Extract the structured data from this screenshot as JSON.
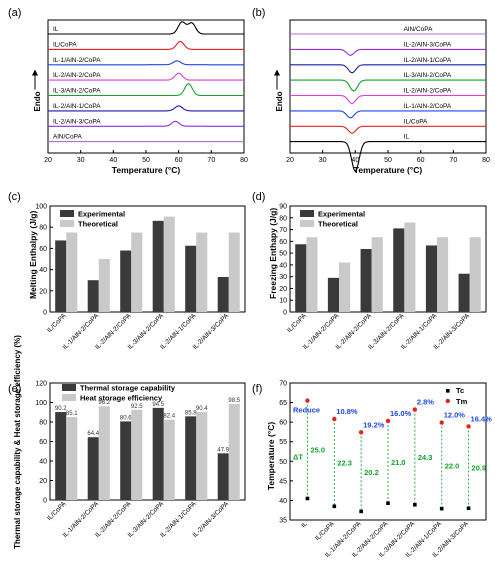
{
  "figure": {
    "panel_labels": [
      "(a)",
      "(b)",
      "(c)",
      "(d)",
      "(e)",
      "(f)"
    ]
  },
  "chart_data": [
    {
      "panel": "(a)",
      "type": "line",
      "xlabel": "Temperature (°C)",
      "ylabel": "Endo",
      "xlim": [
        20,
        80
      ],
      "xticks": [
        20,
        30,
        40,
        50,
        60,
        70,
        80
      ],
      "series": [
        {
          "name": "IL",
          "color": "#000000",
          "peaks": [
            {
              "x": 61,
              "h": 12
            },
            {
              "x": 64,
              "h": 11
            }
          ]
        },
        {
          "name": "IL/CoPA",
          "color": "#e8211c",
          "peaks": [
            {
              "x": 60.5,
              "h": 8
            }
          ]
        },
        {
          "name": "IL-1/AlN-2/CoPA",
          "color": "#1f46e6",
          "peaks": [
            {
              "x": 59.5,
              "h": 4
            }
          ]
        },
        {
          "name": "IL-2/AlN-2/CoPA",
          "color": "#e23bd9",
          "peaks": [
            {
              "x": 60,
              "h": 7
            }
          ]
        },
        {
          "name": "IL-3/AlN-2/CoPA",
          "color": "#12a32a",
          "peaks": [
            {
              "x": 63,
              "h": 12
            }
          ]
        },
        {
          "name": "IL-2/AlN-1/CoPA",
          "color": "#1a1aa8",
          "peaks": [
            {
              "x": 60,
              "h": 5
            }
          ]
        },
        {
          "name": "IL-2/AlN-3/CoPA",
          "color": "#8e2fd3",
          "peaks": [
            {
              "x": 59,
              "h": 5
            }
          ]
        },
        {
          "name": "AlN/CoPA",
          "color": "#b070d8",
          "peaks": []
        }
      ]
    },
    {
      "panel": "(b)",
      "type": "line",
      "xlabel": "Temperature (°C)",
      "ylabel": "Endo",
      "xlim": [
        20,
        80
      ],
      "xticks": [
        20,
        30,
        40,
        50,
        60,
        70,
        80
      ],
      "series": [
        {
          "name": "AlN/CoPA",
          "color": "#b070d8",
          "peaks": []
        },
        {
          "name": "IL-2/AlN-3/CoPA",
          "color": "#8e2fd3",
          "peaks": [
            {
              "x": 38.5,
              "h": 6
            }
          ]
        },
        {
          "name": "IL-2/AlN-1/CoPA",
          "color": "#1a1aa8",
          "peaks": [
            {
              "x": 39,
              "h": 8
            }
          ]
        },
        {
          "name": "IL-3/AlN-2/CoPA",
          "color": "#12a32a",
          "peaks": [
            {
              "x": 39.5,
              "h": 11
            }
          ]
        },
        {
          "name": "IL-2/AlN-2/CoPA",
          "color": "#e23bd9",
          "peaks": [
            {
              "x": 39,
              "h": 8
            }
          ]
        },
        {
          "name": "IL-1/AlN-2/CoPA",
          "color": "#1f46e6",
          "peaks": [
            {
              "x": 38.5,
              "h": 7
            }
          ]
        },
        {
          "name": "IL/CoPA",
          "color": "#e8211c",
          "peaks": [
            {
              "x": 39,
              "h": 7
            }
          ]
        },
        {
          "name": "IL",
          "color": "#000000",
          "peaks": [
            {
              "x": 40,
              "h": 30
            }
          ]
        }
      ]
    },
    {
      "panel": "(c)",
      "type": "bar",
      "ylabel": "Melting Enthalpy (J/g)",
      "ylim": [
        0,
        100
      ],
      "yticks": [
        0,
        20,
        40,
        60,
        80,
        100
      ],
      "categories": [
        "IL/CoPA",
        "IL-1/AlN-2/CoPA",
        "IL-2/AlN-2/CoPA",
        "IL-3/AlN-2/CoPA",
        "IL-2/AlN-1/CoPA",
        "IL-2/AlN-3/CoPA"
      ],
      "legend": "top-left",
      "series": [
        {
          "name": "Experimental",
          "color": "#3a3a3a",
          "values": [
            67.5,
            30,
            58,
            86,
            62.5,
            33
          ]
        },
        {
          "name": "Theoretical",
          "color": "#c9c9c9",
          "values": [
            75,
            50,
            75,
            90,
            75,
            75
          ]
        }
      ]
    },
    {
      "panel": "(d)",
      "type": "bar",
      "ylabel": "Freezing Enthapy (J/g)",
      "ylim": [
        0,
        90
      ],
      "yticks": [
        0,
        10,
        20,
        30,
        40,
        50,
        60,
        70,
        80,
        90
      ],
      "categories": [
        "IL/CoPA",
        "IL-1/AlN-2/CoPA",
        "IL-2/AlN-2/CoPA",
        "IL-3/AlN-2/CoPA",
        "IL-2/AlN-1/CoPA",
        "IL-2/AlN-3/CoPA"
      ],
      "legend": "top-left",
      "series": [
        {
          "name": "Experimental",
          "color": "#3a3a3a",
          "values": [
            57.5,
            29,
            53.5,
            71,
            56.5,
            32.5
          ]
        },
        {
          "name": "Theoretical",
          "color": "#c9c9c9",
          "values": [
            63.5,
            42,
            63.5,
            76,
            63.5,
            63.5
          ]
        }
      ]
    },
    {
      "panel": "(e)",
      "type": "bar",
      "ylabel": "Thermal storage capability & Heat storage efficiency (%)",
      "ylim": [
        0,
        120
      ],
      "yticks": [
        0,
        20,
        40,
        60,
        80,
        100,
        120
      ],
      "categories": [
        "IL/CoPA",
        "IL-1/AlN-2/CoPA",
        "IL-2/AlN-2/CoPA",
        "IL-3/AlN-2/CoPA",
        "IL-2/AlN-1/CoPA",
        "IL-2/AlN-3/CoPA"
      ],
      "legend": "top-left",
      "series": [
        {
          "name": "Thermal storage capability",
          "color": "#3a3a3a",
          "values": [
            90.2,
            64.4,
            80.6,
            94.5,
            85.8,
            47.9
          ],
          "labels": [
            "90.2",
            "64.4",
            "80.6",
            "94.5",
            "85.8",
            "47.9"
          ]
        },
        {
          "name": "Heat storage efficiency",
          "color": "#c9c9c9",
          "values": [
            85.1,
            96.2,
            92.5,
            82.4,
            90.4,
            98.5
          ],
          "labels": [
            "85.1",
            "96.2",
            "92.5",
            "82.4",
            "90.4",
            "98.5"
          ]
        }
      ]
    },
    {
      "panel": "(f)",
      "type": "scatter",
      "ylabel": "Temperature (°C)",
      "ylim": [
        35,
        70
      ],
      "yticks": [
        35,
        40,
        45,
        50,
        55,
        60,
        65,
        70
      ],
      "categories": [
        "IL",
        "IL/CoPA",
        "IL-1/AlN-2/CoPA",
        "IL-2/AlN-2/CoPA",
        "IL-3/AlN-2/CoPA",
        "IL-2/AlN-1/CoPA",
        "IL-2/AlN-3/CoPA"
      ],
      "legend": "top-right",
      "series": [
        {
          "name": "Tc",
          "color": "#000000",
          "values": [
            40.5,
            38.5,
            37.2,
            39.3,
            38.9,
            37.9,
            38.0
          ]
        },
        {
          "name": "Tm",
          "color": "#e8211c",
          "values": [
            65.5,
            60.8,
            57.4,
            60.3,
            63.2,
            59.9,
            58.9
          ]
        }
      ],
      "reduce_label": "Reduce",
      "delta_label": "ΔT",
      "reduce_values": [
        "10.8%",
        "19.2%",
        "16.0%",
        "2.8%",
        "12.0%",
        "16.4%"
      ],
      "delta_values": [
        "25.0",
        "22.3",
        "20.2",
        "21.0",
        "24.3",
        "22.0",
        "20.9"
      ],
      "reduce_color": "#1f46e6",
      "delta_color": "#12a32a"
    }
  ]
}
